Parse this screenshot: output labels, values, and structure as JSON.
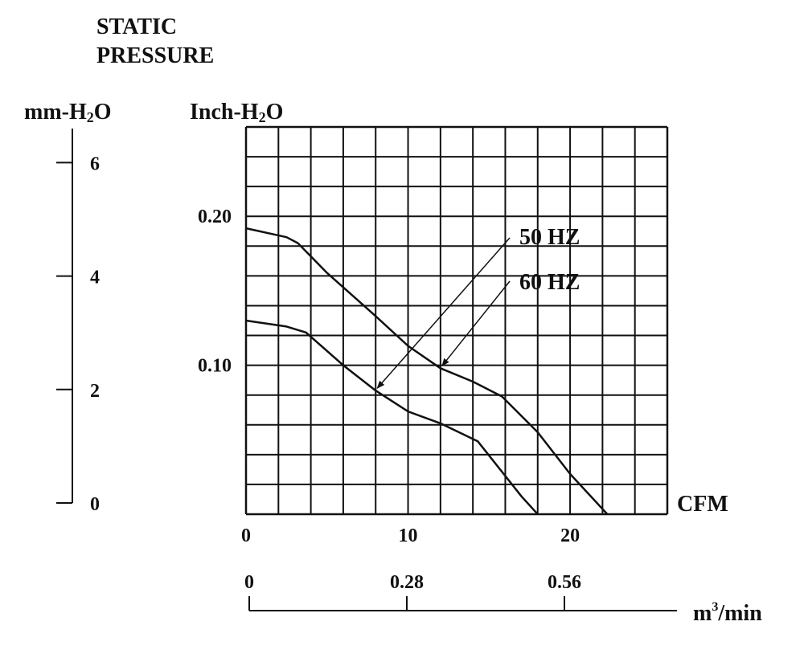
{
  "title_line1": "STATIC",
  "title_line2": "PRESSURE",
  "left_axis_label": "mm-H",
  "left_axis_label_sub": "2",
  "left_axis_label_end": "O",
  "plot_y_label": "Inch-H",
  "plot_y_label_sub": "2",
  "plot_y_label_end": "O",
  "x_label": "CFM",
  "bottom_axis_label": "m",
  "bottom_axis_label_sup": "3",
  "bottom_axis_label_end": "/min",
  "colors": {
    "ink": "#111111",
    "background": "#ffffff"
  },
  "chart_data": {
    "type": "line",
    "x_unit": "CFM",
    "y_unit": "Inch-H2O",
    "xlim": [
      0,
      26
    ],
    "ylim": [
      0,
      0.26
    ],
    "grid": true,
    "x_ticks": [
      "0",
      "10",
      "20"
    ],
    "x_tick_values": [
      0,
      10,
      20
    ],
    "y_ticks": [
      "0.10",
      "0.20"
    ],
    "y_tick_values": [
      0.1,
      0.2
    ],
    "series": [
      {
        "name": "50 HZ",
        "x": [
          0,
          2.5,
          3.7,
          6,
          8,
          10,
          12,
          14.3,
          17,
          18
        ],
        "y": [
          0.13,
          0.126,
          0.122,
          0.1,
          0.083,
          0.069,
          0.061,
          0.049,
          0.012,
          0
        ]
      },
      {
        "name": "60 HZ",
        "x": [
          0,
          2.5,
          3.2,
          5,
          8,
          10,
          12,
          14,
          15.8,
          18,
          20,
          22.3
        ],
        "y": [
          0.192,
          0.186,
          0.182,
          0.162,
          0.133,
          0.113,
          0.098,
          0.089,
          0.079,
          0.055,
          0.027,
          0
        ]
      }
    ],
    "secondary_y_axis": {
      "label": "mm-H2O",
      "ticks": [
        "0",
        "2",
        "4",
        "6"
      ],
      "tick_values": [
        0,
        2,
        4,
        6
      ],
      "lim": [
        0,
        6.6
      ]
    },
    "secondary_x_axis": {
      "label": "m3/min",
      "ticks": [
        "0",
        "0.28",
        "0.56"
      ],
      "tick_values": [
        0,
        0.28,
        0.56
      ]
    },
    "annotations": [
      "50 HZ",
      "60 HZ"
    ]
  }
}
